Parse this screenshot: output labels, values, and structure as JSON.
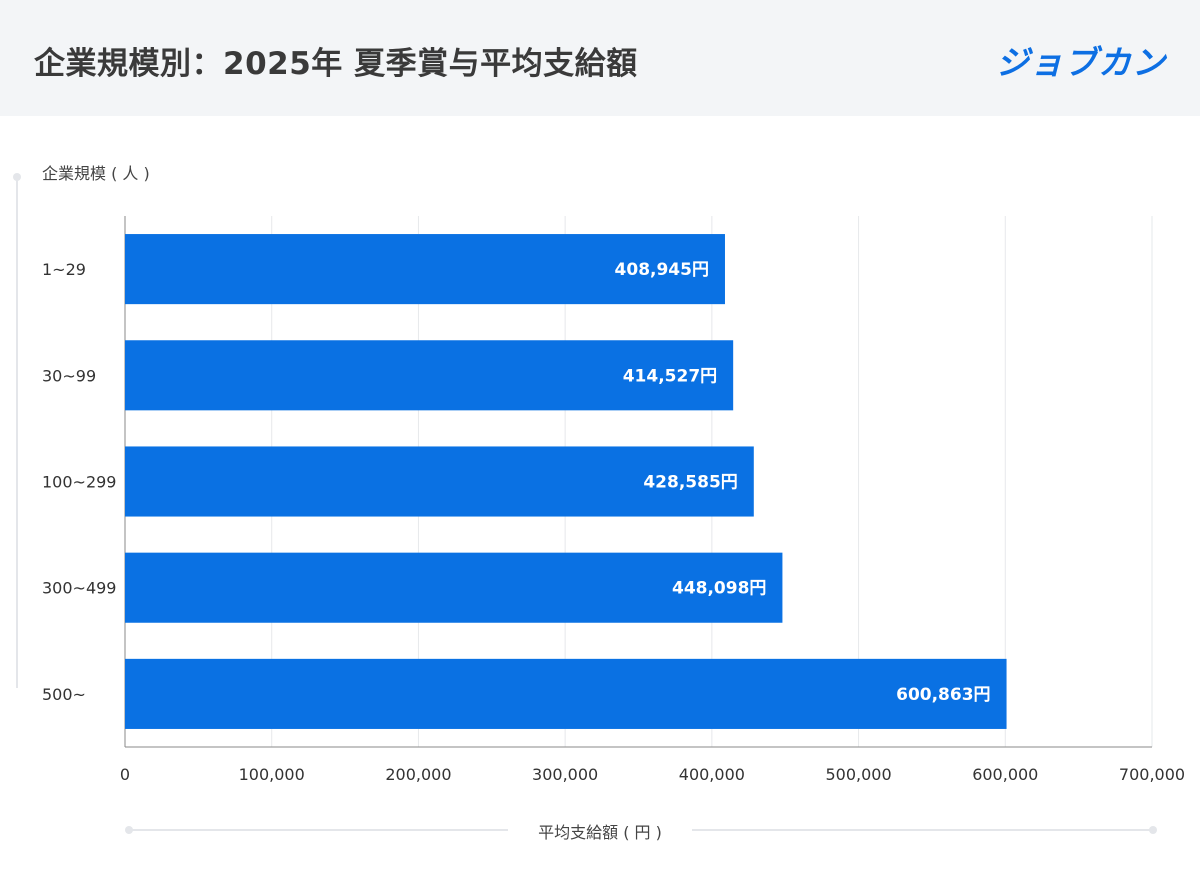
{
  "header": {
    "title": "企業規模別：2025年 夏季賞与平均支給額",
    "brand": "ジョブカン"
  },
  "chart_data": {
    "type": "bar",
    "orientation": "horizontal",
    "title": "企業規模別：2025年 夏季賞与平均支給額",
    "ylabel": "企業規模 ( 人 )",
    "xlabel": "平均支給額 ( 円 )",
    "categories": [
      "1~29",
      "30~99",
      "100~299",
      "300~499",
      "500~"
    ],
    "values": [
      408945,
      414527,
      428585,
      448098,
      600863
    ],
    "value_labels": [
      "408,945円",
      "414,527円",
      "428,585円",
      "448,098円",
      "600,863円"
    ],
    "xlim": [
      0,
      700000
    ],
    "xticks": [
      0,
      100000,
      200000,
      300000,
      400000,
      500000,
      600000,
      700000
    ],
    "xtick_labels": [
      "0",
      "100,000",
      "200,000",
      "300,000",
      "400,000",
      "500,000",
      "600,000",
      "700,000"
    ],
    "grid": true,
    "bar_color": "#0a71e3"
  }
}
